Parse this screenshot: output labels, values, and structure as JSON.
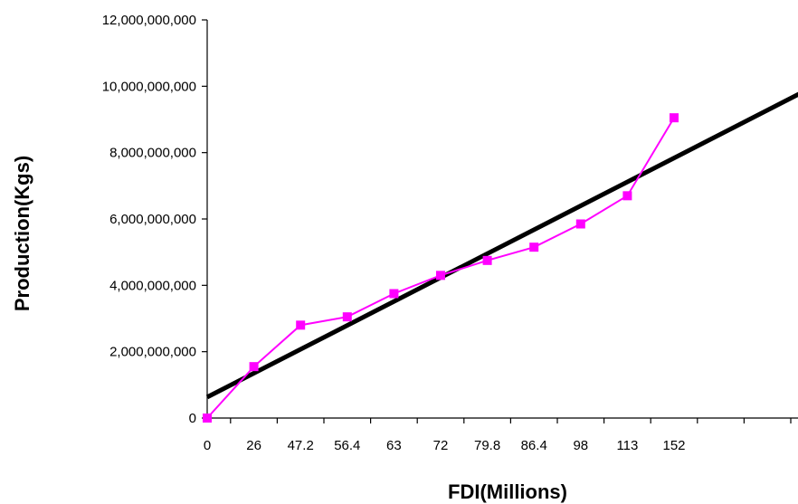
{
  "chart_data": {
    "type": "line",
    "xlabel": "FDI(Millions)",
    "ylabel": "Production(Kgs)",
    "categories": [
      "0",
      "26",
      "47.2",
      "56.4",
      "63",
      "72",
      "79.8",
      "86.4",
      "98",
      "113",
      "152"
    ],
    "total_category_slots": 13,
    "ylim": [
      0,
      12000000000
    ],
    "y_ticks": [
      0,
      2000000000,
      4000000000,
      6000000000,
      8000000000,
      10000000000,
      12000000000
    ],
    "y_tick_labels": [
      "0",
      "2,000,000,000",
      "4,000,000,000",
      "6,000,000,000",
      "8,000,000,000",
      "10,000,000,000",
      "12,000,000,000"
    ],
    "grid": false,
    "series": [
      {
        "values": [
          0,
          1550000000,
          2800000000,
          3050000000,
          3750000000,
          4300000000,
          4750000000,
          5150000000,
          5850000000,
          6700000000,
          9050000000
        ],
        "color": "#ff00ff",
        "marker": "square"
      }
    ],
    "trendline": {
      "type": "linear",
      "start": [
        0,
        630000000
      ],
      "end": [
        13,
        10000000000
      ],
      "color": "#000000"
    }
  }
}
